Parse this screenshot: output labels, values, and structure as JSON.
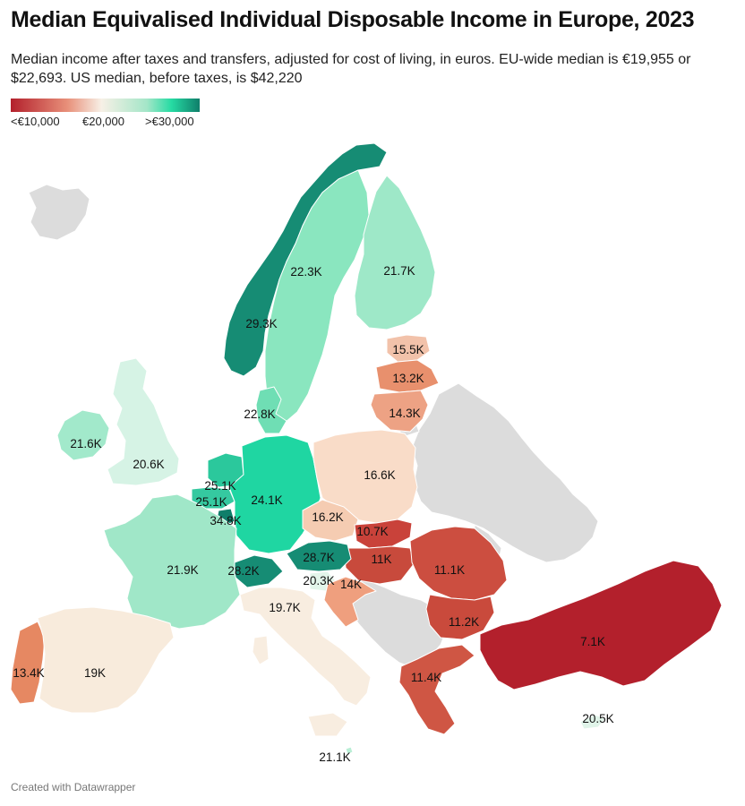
{
  "title": "Median Equivalised Individual Disposable Income in Europe, 2023",
  "subtitle": "Median income after taxes and transfers, adjusted for cost of living, in euros. EU-wide median is €19,955 or $22,693. US median, before taxes, is $42,220",
  "legend": {
    "low": "<€10,000",
    "mid": "€20,000",
    "high": ">€30,000",
    "colors": [
      "#b3202c",
      "#e8907a",
      "#f7f0e6",
      "#a4e6c8",
      "#26dba3",
      "#0f7e6a"
    ]
  },
  "no_data_color": "#dcdcdc",
  "regions": [
    {
      "name": "Norway",
      "label": "29.3K",
      "color": "#168c74"
    },
    {
      "name": "Sweden",
      "label": "22.3K",
      "color": "#8ae6bf"
    },
    {
      "name": "Finland",
      "label": "21.7K",
      "color": "#9ee8c8"
    },
    {
      "name": "Estonia",
      "label": "15.5K",
      "color": "#f2c2aa"
    },
    {
      "name": "Latvia",
      "label": "13.2K",
      "color": "#e8906d"
    },
    {
      "name": "Lithuania",
      "label": "14.3K",
      "color": "#eda284"
    },
    {
      "name": "Denmark",
      "label": "22.8K",
      "color": "#6fdeb4"
    },
    {
      "name": "Ireland",
      "label": "21.6K",
      "color": "#a2e9cb"
    },
    {
      "name": "United Kingdom",
      "label": "20.6K",
      "color": "#d6f3e5"
    },
    {
      "name": "Netherlands",
      "label": "25.1K",
      "color": "#2bc89c"
    },
    {
      "name": "Belgium",
      "label": "25.1K",
      "color": "#35c9a0"
    },
    {
      "name": "Luxembourg",
      "label": "34.8K",
      "color": "#0f7e6a"
    },
    {
      "name": "Germany",
      "label": "24.1K",
      "color": "#1fd6a2"
    },
    {
      "name": "Poland",
      "label": "16.6K",
      "color": "#f9dcc8"
    },
    {
      "name": "Czechia",
      "label": "16.2K",
      "color": "#f5ccb2"
    },
    {
      "name": "Slovakia",
      "label": "10.7K",
      "color": "#c9423a"
    },
    {
      "name": "Hungary",
      "label": "11K",
      "color": "#c84a3c"
    },
    {
      "name": "Romania",
      "label": "11.1K",
      "color": "#cc4e40"
    },
    {
      "name": "Austria",
      "label": "28.7K",
      "color": "#168c74"
    },
    {
      "name": "Switzerland",
      "label": "28.2K",
      "color": "#168c74"
    },
    {
      "name": "France",
      "label": "21.9K",
      "color": "#a0e7c8"
    },
    {
      "name": "Slovenia",
      "label": "20.3K",
      "color": "#e3f5ea"
    },
    {
      "name": "Croatia",
      "label": "14K",
      "color": "#ef9f7e"
    },
    {
      "name": "Italy",
      "label": "19.7K",
      "color": "#f8ede0"
    },
    {
      "name": "Bulgaria",
      "label": "11.2K",
      "color": "#c94a3c"
    },
    {
      "name": "Greece",
      "label": "11.4K",
      "color": "#cf5644"
    },
    {
      "name": "Turkey",
      "label": "7.1K",
      "color": "#b3202c"
    },
    {
      "name": "Cyprus",
      "label": "20.5K",
      "color": "#e0f4e9"
    },
    {
      "name": "Portugal",
      "label": "13.4K",
      "color": "#e68862"
    },
    {
      "name": "Spain",
      "label": "19K",
      "color": "#f8ebdc"
    },
    {
      "name": "Malta",
      "label": "21.1K",
      "color": "#b9eed5"
    }
  ],
  "footer": "Created with Datawrapper"
}
